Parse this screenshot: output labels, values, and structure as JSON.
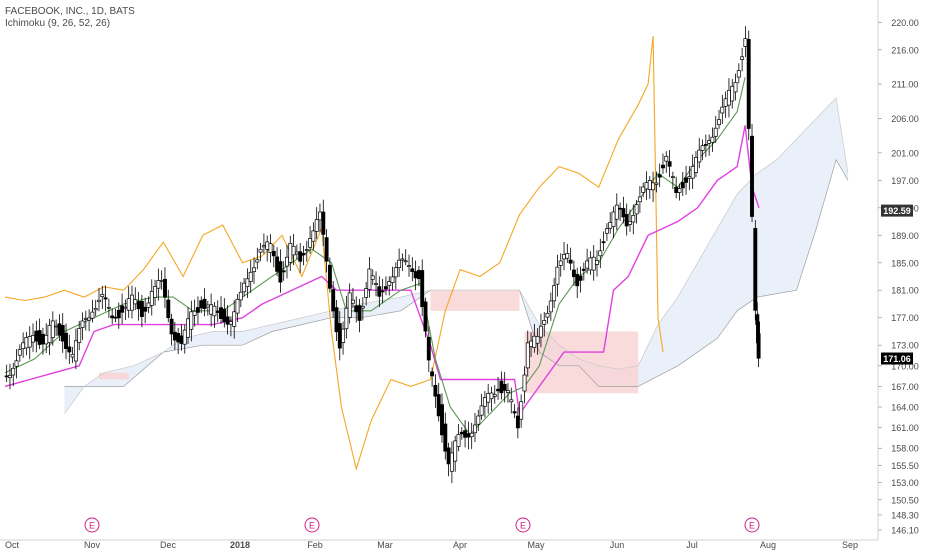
{
  "header": {
    "symbol_line": "FACEBOOK, INC., 1D, BATS",
    "indicator_line": "Ichimoku (9, 26, 52, 26)"
  },
  "chart_data": {
    "type": "candlestick",
    "title": "FACEBOOK, INC., 1D, BATS",
    "indicator": "Ichimoku (9, 26, 52, 26)",
    "x_ticks": [
      "Oct",
      "Nov",
      "Dec",
      "2018",
      "Feb",
      "Mar",
      "Apr",
      "May",
      "Jun",
      "Jul",
      "Aug",
      "Sep"
    ],
    "y_ticks": [
      "220.00",
      "216.00",
      "211.00",
      "206.00",
      "201.00",
      "197.00",
      "193.00",
      "189.00",
      "185.00",
      "181.00",
      "177.00",
      "173.00",
      "170.00",
      "167.00",
      "164.00",
      "161.00",
      "158.00",
      "155.50",
      "153.00",
      "150.50",
      "148.30",
      "146.10"
    ],
    "ylim": [
      146.1,
      221.5
    ],
    "price_label": "192.59",
    "last_price_label": "171.06",
    "earnings_marker": "E",
    "earnings_dates": [
      "Nov",
      "Feb",
      "May",
      "Aug"
    ],
    "colors": {
      "up": "#000000",
      "down": "#000000",
      "conversion_line": "#5a9a52",
      "base_line": "#e040e0",
      "lagging_span": "#f5a623",
      "lead_a": "#9e9e9e",
      "cloud_bull": "#e8eef8",
      "cloud_bear": "#f9d2d2",
      "earnings": "#d02080"
    },
    "close_path": [
      [
        0,
        168.5
      ],
      [
        10,
        170.0
      ],
      [
        20,
        172.5
      ],
      [
        30,
        175.2
      ],
      [
        40,
        173.0
      ],
      [
        50,
        176.0
      ],
      [
        60,
        174.5
      ],
      [
        70,
        171.0
      ],
      [
        80,
        176.5
      ],
      [
        90,
        178.5
      ],
      [
        100,
        179.5
      ],
      [
        110,
        177.5
      ],
      [
        120,
        178.0
      ],
      [
        130,
        179.5
      ],
      [
        140,
        178.0
      ],
      [
        150,
        180.5
      ],
      [
        160,
        182.0
      ],
      [
        170,
        175.5
      ],
      [
        180,
        172.5
      ],
      [
        190,
        178.0
      ],
      [
        200,
        179.0
      ],
      [
        210,
        178.0
      ],
      [
        220,
        177.5
      ],
      [
        230,
        176.5
      ],
      [
        240,
        180.0
      ],
      [
        250,
        184.5
      ],
      [
        260,
        186.5
      ],
      [
        270,
        187.5
      ],
      [
        280,
        183.0
      ],
      [
        290,
        187.0
      ],
      [
        300,
        185.5
      ],
      [
        310,
        189.0
      ],
      [
        320,
        191.5
      ],
      [
        330,
        182.0
      ],
      [
        340,
        172.5
      ],
      [
        350,
        180.0
      ],
      [
        360,
        177.5
      ],
      [
        370,
        183.5
      ],
      [
        380,
        180.0
      ],
      [
        390,
        183.0
      ],
      [
        400,
        184.5
      ],
      [
        410,
        185.0
      ],
      [
        420,
        183.0
      ],
      [
        430,
        170.0
      ],
      [
        440,
        163.5
      ],
      [
        450,
        155.5
      ],
      [
        460,
        159.5
      ],
      [
        470,
        160.5
      ],
      [
        480,
        162.0
      ],
      [
        490,
        166.0
      ],
      [
        500,
        167.0
      ],
      [
        510,
        165.5
      ],
      [
        520,
        161.5
      ],
      [
        530,
        173.5
      ],
      [
        540,
        173.5
      ],
      [
        550,
        178.5
      ],
      [
        560,
        184.0
      ],
      [
        570,
        186.0
      ],
      [
        580,
        182.5
      ],
      [
        590,
        184.5
      ],
      [
        600,
        185.5
      ],
      [
        610,
        190.5
      ],
      [
        620,
        192.5
      ],
      [
        630,
        191.0
      ],
      [
        640,
        193.5
      ],
      [
        650,
        196.0
      ],
      [
        660,
        197.5
      ],
      [
        670,
        200.0
      ],
      [
        680,
        195.0
      ],
      [
        690,
        197.5
      ],
      [
        700,
        199.5
      ],
      [
        710,
        202.5
      ],
      [
        720,
        205.0
      ],
      [
        730,
        208.0
      ],
      [
        740,
        212.0
      ],
      [
        750,
        217.5
      ],
      [
        760,
        177.5
      ],
      [
        762,
        172.0
      ]
    ],
    "conversion_path": [
      [
        0,
        169
      ],
      [
        30,
        171
      ],
      [
        60,
        175
      ],
      [
        90,
        177
      ],
      [
        120,
        179
      ],
      [
        150,
        180
      ],
      [
        170,
        180
      ],
      [
        190,
        178
      ],
      [
        220,
        178
      ],
      [
        250,
        181
      ],
      [
        280,
        184
      ],
      [
        310,
        187
      ],
      [
        330,
        185
      ],
      [
        345,
        178
      ],
      [
        370,
        178
      ],
      [
        400,
        181
      ],
      [
        420,
        182
      ],
      [
        435,
        171
      ],
      [
        450,
        164
      ],
      [
        470,
        160
      ],
      [
        490,
        163
      ],
      [
        510,
        166
      ],
      [
        525,
        167
      ],
      [
        540,
        170
      ],
      [
        560,
        179
      ],
      [
        580,
        183
      ],
      [
        600,
        185
      ],
      [
        620,
        190
      ],
      [
        640,
        194
      ],
      [
        660,
        198
      ],
      [
        680,
        196
      ],
      [
        700,
        200
      ],
      [
        720,
        203
      ],
      [
        740,
        207
      ],
      [
        748,
        212
      ]
    ],
    "base_path": [
      [
        0,
        167
      ],
      [
        25,
        168
      ],
      [
        50,
        169
      ],
      [
        75,
        170
      ],
      [
        90,
        175
      ],
      [
        110,
        176
      ],
      [
        140,
        176
      ],
      [
        160,
        176
      ],
      [
        180,
        176
      ],
      [
        210,
        176
      ],
      [
        240,
        177
      ],
      [
        260,
        179
      ],
      [
        290,
        181
      ],
      [
        320,
        183
      ],
      [
        335,
        181
      ],
      [
        380,
        181
      ],
      [
        410,
        181
      ],
      [
        430,
        173
      ],
      [
        440,
        168
      ],
      [
        480,
        168
      ],
      [
        515,
        168
      ],
      [
        520,
        163
      ],
      [
        540,
        167
      ],
      [
        565,
        172
      ],
      [
        605,
        172
      ],
      [
        615,
        181
      ],
      [
        630,
        183
      ],
      [
        650,
        189
      ],
      [
        680,
        191
      ],
      [
        700,
        193
      ],
      [
        720,
        197
      ],
      [
        740,
        199
      ],
      [
        748,
        205
      ],
      [
        755,
        196
      ],
      [
        762,
        193
      ]
    ],
    "lagging_path": [
      [
        0,
        180
      ],
      [
        20,
        179.5
      ],
      [
        40,
        180
      ],
      [
        60,
        181
      ],
      [
        80,
        180
      ],
      [
        100,
        181.5
      ],
      [
        120,
        181
      ],
      [
        140,
        184
      ],
      [
        160,
        188
      ],
      [
        180,
        183
      ],
      [
        200,
        189
      ],
      [
        220,
        190.5
      ],
      [
        240,
        185
      ],
      [
        260,
        186
      ],
      [
        280,
        189
      ],
      [
        300,
        183
      ],
      [
        320,
        190
      ],
      [
        330,
        175
      ],
      [
        340,
        164
      ],
      [
        355,
        155
      ],
      [
        370,
        162
      ],
      [
        390,
        168
      ],
      [
        410,
        167
      ],
      [
        430,
        168
      ],
      [
        445,
        178
      ],
      [
        460,
        184
      ],
      [
        480,
        183
      ],
      [
        500,
        185
      ],
      [
        520,
        192
      ],
      [
        540,
        196
      ],
      [
        560,
        199
      ],
      [
        580,
        198
      ],
      [
        600,
        196
      ],
      [
        620,
        203
      ],
      [
        640,
        208
      ],
      [
        650,
        211
      ],
      [
        655,
        218
      ],
      [
        660,
        177
      ],
      [
        665,
        172
      ]
    ],
    "lead_a_path": [
      [
        60,
        163
      ],
      [
        80,
        167
      ],
      [
        100,
        169
      ],
      [
        130,
        170
      ],
      [
        160,
        172
      ],
      [
        180,
        174
      ],
      [
        210,
        175
      ],
      [
        240,
        175
      ],
      [
        270,
        176
      ],
      [
        300,
        177
      ],
      [
        330,
        178
      ],
      [
        360,
        179
      ],
      [
        400,
        180
      ],
      [
        430,
        181
      ],
      [
        480,
        181
      ],
      [
        520,
        181
      ],
      [
        540,
        176
      ],
      [
        560,
        173
      ],
      [
        580,
        171
      ],
      [
        600,
        170
      ],
      [
        620,
        169.5
      ],
      [
        640,
        170
      ],
      [
        660,
        176
      ],
      [
        680,
        180
      ],
      [
        700,
        185
      ],
      [
        720,
        190
      ],
      [
        740,
        195
      ],
      [
        760,
        198
      ],
      [
        780,
        200
      ],
      [
        800,
        203
      ],
      [
        820,
        206
      ],
      [
        840,
        209
      ],
      [
        852,
        198
      ]
    ],
    "lead_b_path": [
      [
        60,
        167
      ],
      [
        90,
        167
      ],
      [
        120,
        167
      ],
      [
        160,
        172
      ],
      [
        200,
        173
      ],
      [
        240,
        173
      ],
      [
        270,
        175
      ],
      [
        300,
        176
      ],
      [
        330,
        177
      ],
      [
        360,
        177
      ],
      [
        400,
        178
      ],
      [
        430,
        181
      ],
      [
        460,
        181
      ],
      [
        500,
        181
      ],
      [
        520,
        181
      ],
      [
        540,
        172
      ],
      [
        560,
        170
      ],
      [
        580,
        170
      ],
      [
        600,
        167
      ],
      [
        640,
        167
      ],
      [
        680,
        170
      ],
      [
        700,
        172
      ],
      [
        720,
        174
      ],
      [
        740,
        178
      ],
      [
        760,
        180
      ],
      [
        800,
        181
      ],
      [
        820,
        190
      ],
      [
        840,
        200
      ],
      [
        852,
        197
      ]
    ]
  }
}
